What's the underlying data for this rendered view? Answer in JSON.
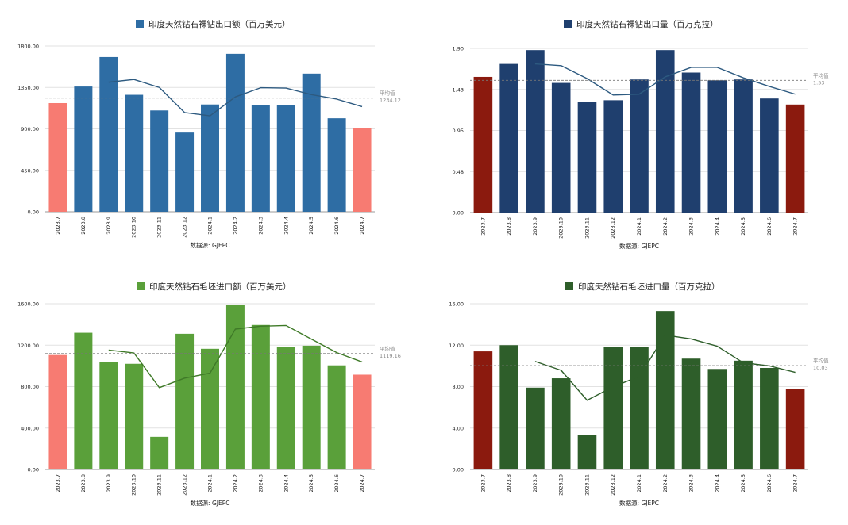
{
  "chart_data": [
    {
      "type": "bar",
      "title": "印度天然钻石裸钻出口额（百万美元）",
      "source": "数据源: GJEPC",
      "legend_color": "#2e6da4",
      "bar_color": "#2e6da4",
      "highlight_color": "#f77b72",
      "line_color": "#2d5a80",
      "categories": [
        "2023.7",
        "2023.8",
        "2023.9",
        "2023.10",
        "2023.11",
        "2023.12",
        "2024.1",
        "2024.2",
        "2024.3",
        "2024.4",
        "2024.5",
        "2024.6",
        "2024.7"
      ],
      "values": [
        1180,
        1360,
        1680,
        1270,
        1100,
        860,
        1165,
        1715,
        1160,
        1155,
        1500,
        1015,
        910
      ],
      "highlight": [
        0,
        12
      ],
      "moving_average": [
        null,
        null,
        1407,
        1437,
        1350,
        1077,
        1042,
        1247,
        1347,
        1343,
        1272,
        1223,
        1142
      ],
      "average_label": "平均值",
      "average_value": "1234.12",
      "yticks": [
        "0.00",
        "450.00",
        "900.00",
        "1350.00",
        "1800.00"
      ],
      "ylim": [
        0,
        1800
      ]
    },
    {
      "type": "bar",
      "title": "印度天然钻石裸钻出口量（百万克拉）",
      "source": "数据源: GJEPC",
      "legend_color": "#1f3f6e",
      "bar_color": "#1f3f6e",
      "highlight_color": "#8b1a0e",
      "line_color": "#2d5a80",
      "categories": [
        "2023.7",
        "2023.8",
        "2023.9",
        "2023.10",
        "2023.11",
        "2023.12",
        "2024.1",
        "2024.2",
        "2024.3",
        "2024.4",
        "2024.5",
        "2024.6",
        "2024.7"
      ],
      "values": [
        1.57,
        1.72,
        1.88,
        1.5,
        1.28,
        1.3,
        1.54,
        1.88,
        1.62,
        1.53,
        1.54,
        1.32,
        1.25
      ],
      "highlight": [
        0,
        12
      ],
      "moving_average": [
        null,
        null,
        1.72,
        1.7,
        1.55,
        1.36,
        1.37,
        1.57,
        1.68,
        1.68,
        1.56,
        1.46,
        1.37
      ],
      "average_label": "平均值",
      "average_value": "1.53",
      "yticks": [
        "0.00",
        "0.48",
        "0.95",
        "1.43",
        "1.90"
      ],
      "ylim": [
        0,
        1.9
      ]
    },
    {
      "type": "bar",
      "title": "印度天然钻石毛坯进口额（百万美元）",
      "source": "数据源: GJEPC",
      "legend_color": "#5aa03a",
      "bar_color": "#5aa03a",
      "highlight_color": "#f77b72",
      "line_color": "#3f7a28",
      "categories": [
        "2023.7",
        "2023.8",
        "2023.9",
        "2023.10",
        "2023.11",
        "2023.12",
        "2024.1",
        "2024.2",
        "2024.3",
        "2024.4",
        "2024.5",
        "2024.6",
        "2024.7"
      ],
      "values": [
        1105,
        1320,
        1035,
        1020,
        315,
        1310,
        1165,
        1590,
        1395,
        1185,
        1195,
        1005,
        915
      ],
      "highlight": [
        0,
        12
      ],
      "moving_average": [
        null,
        null,
        1153,
        1125,
        790,
        882,
        930,
        1355,
        1383,
        1390,
        1258,
        1128,
        1038
      ],
      "average_label": "平均值",
      "average_value": "1119.16",
      "yticks": [
        "0.00",
        "400.00",
        "800.00",
        "1200.00",
        "1600.00"
      ],
      "ylim": [
        0,
        1600
      ]
    },
    {
      "type": "bar",
      "title": "印度天然钻石毛坯进口量（百万克拉）",
      "source": "数据源: GJEPC",
      "legend_color": "#2e5e2a",
      "bar_color": "#2e5e2a",
      "highlight_color": "#8b1a0e",
      "line_color": "#2e5e2a",
      "categories": [
        "2023.7",
        "2023.8",
        "2023.9",
        "2023.10",
        "2023.11",
        "2023.12",
        "2024.1",
        "2024.2",
        "2024.3",
        "2024.4",
        "2024.5",
        "2024.6",
        "2024.7"
      ],
      "values": [
        11.4,
        12.0,
        7.9,
        8.8,
        3.35,
        11.8,
        11.8,
        15.3,
        10.7,
        9.7,
        10.5,
        9.8,
        7.8
      ],
      "highlight": [
        0,
        12
      ],
      "moving_average": [
        null,
        null,
        10.43,
        9.57,
        6.68,
        7.98,
        8.98,
        12.97,
        12.6,
        11.9,
        10.3,
        10.0,
        9.37
      ],
      "average_label": "平均值",
      "average_value": "10.03",
      "yticks": [
        "0.00",
        "4.00",
        "8.00",
        "12.00",
        "16.00"
      ],
      "ylim": [
        0,
        16
      ]
    }
  ]
}
